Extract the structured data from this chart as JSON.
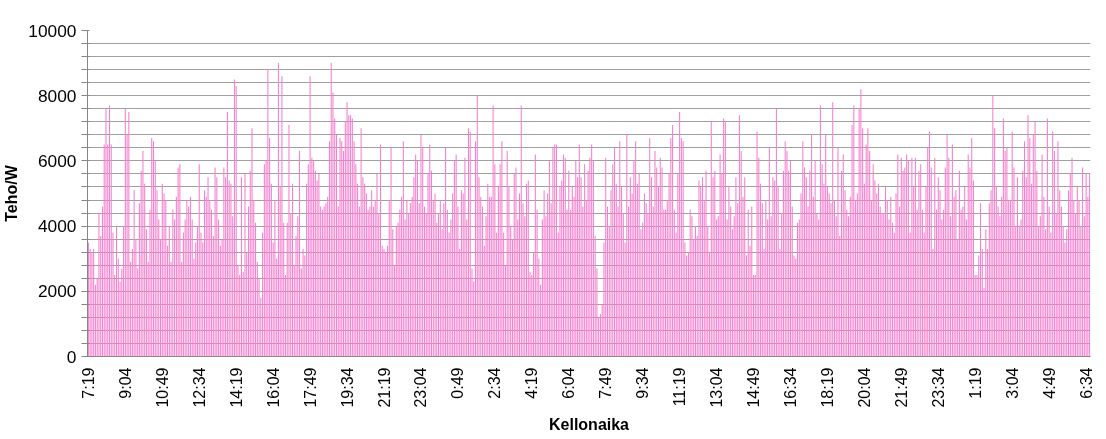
{
  "chart_data": {
    "type": "bar",
    "xlabel": "Kellonaika",
    "ylabel": "Teho/W",
    "color": "#f77fcf",
    "grid": "y",
    "ylim": [
      0,
      10000
    ],
    "yticks": [
      0,
      {
        "value": 400,
        "label": null
      },
      {
        "value": 800,
        "label": null
      },
      {
        "value": 1200,
        "label": null
      },
      {
        "value": 1600,
        "label": null
      },
      2000,
      {
        "value": 2400,
        "label": null
      },
      {
        "value": 2800,
        "label": null
      },
      {
        "value": 3200,
        "label": null
      },
      {
        "value": 3600,
        "label": null
      },
      4000,
      {
        "value": 4400,
        "label": null
      },
      {
        "value": 4800,
        "label": null
      },
      {
        "value": 5200,
        "label": null
      },
      {
        "value": 5600,
        "label": null
      },
      6000,
      {
        "value": 6400,
        "label": null
      },
      {
        "value": 6800,
        "label": null
      },
      {
        "value": 7200,
        "label": null
      },
      {
        "value": 7600,
        "label": null
      },
      8000,
      {
        "value": 8400,
        "label": null
      },
      {
        "value": 8800,
        "label": null
      },
      {
        "value": 9200,
        "label": null
      },
      {
        "value": 9600,
        "label": null
      },
      10000
    ],
    "categories": [
      "7:19",
      null,
      null,
      null,
      null,
      null,
      null,
      null,
      null,
      null,
      null,
      null,
      null,
      null,
      null,
      null,
      null,
      null,
      null,
      null,
      null,
      "9:04",
      null,
      null,
      null,
      null,
      null,
      null,
      null,
      null,
      null,
      null,
      null,
      null,
      null,
      null,
      null,
      null,
      null,
      null,
      null,
      null,
      "10:49",
      null,
      null,
      null,
      null,
      null,
      null,
      null,
      null,
      null,
      null,
      null,
      null,
      null,
      null,
      null,
      null,
      null,
      null,
      null,
      null,
      "12:34",
      null,
      null,
      null,
      null,
      null,
      null,
      null,
      null,
      null,
      null,
      null,
      null,
      null,
      null,
      null,
      null,
      null,
      null,
      null,
      null,
      "14:19",
      null,
      null,
      null,
      null,
      null,
      null,
      null,
      null,
      null,
      null,
      null,
      null,
      null,
      null,
      null,
      null,
      null,
      null,
      null,
      null,
      "16:04",
      null,
      null,
      null,
      null,
      null,
      null,
      null,
      null,
      null,
      null,
      null,
      null,
      null,
      null,
      null,
      null,
      null,
      null,
      null,
      null,
      "17:49",
      null,
      null,
      null,
      null,
      null,
      null,
      null,
      null,
      null,
      null,
      null,
      null,
      null,
      null,
      null,
      null,
      null,
      null,
      null,
      null,
      "19:34",
      null,
      null,
      null,
      null,
      null,
      null,
      null,
      null,
      null,
      null,
      null,
      null,
      null,
      null,
      null,
      null,
      null,
      null,
      null,
      null,
      "21:19",
      null,
      null,
      null,
      null,
      null,
      null,
      null,
      null,
      null,
      null,
      null,
      null,
      null,
      null,
      null,
      null,
      null,
      null,
      null,
      null,
      "23:04",
      null,
      null,
      null,
      null,
      null,
      null,
      null,
      null,
      null,
      null,
      null,
      null,
      null,
      null,
      null,
      null,
      null,
      null,
      null,
      null,
      "0:49",
      null,
      null,
      null,
      null,
      null,
      null,
      null,
      null,
      null,
      null,
      null,
      null,
      null,
      null,
      null,
      null,
      null,
      null,
      null,
      null,
      "2:34",
      null,
      null,
      null,
      null,
      null,
      null,
      null,
      null,
      null,
      null,
      null,
      null,
      null,
      null,
      null,
      null,
      null,
      null,
      null,
      null,
      "4:19",
      null,
      null,
      null,
      null,
      null,
      null,
      null,
      null,
      null,
      null,
      null,
      null,
      null,
      null,
      null,
      null,
      null,
      null,
      null,
      null,
      "6:04",
      null,
      null,
      null,
      null,
      null,
      null,
      null,
      null,
      null,
      null,
      null,
      null,
      null,
      null,
      null,
      null,
      null,
      null,
      null,
      null,
      "7:49",
      null,
      null,
      null,
      null,
      null,
      null,
      null,
      null,
      null,
      null,
      null,
      null,
      null,
      null,
      null,
      null,
      null,
      null,
      null,
      null,
      "9:34",
      null,
      null,
      null,
      null,
      null,
      null,
      null,
      null,
      null,
      null,
      null,
      null,
      null,
      null,
      null,
      null,
      null,
      null,
      null,
      null,
      "11:19",
      null,
      null,
      null,
      null,
      null,
      null,
      null,
      null,
      null,
      null,
      null,
      null,
      null,
      null,
      null,
      null,
      null,
      null,
      null,
      null,
      "13:04",
      null,
      null,
      null,
      null,
      null,
      null,
      null,
      null,
      null,
      null,
      null,
      null,
      null,
      null,
      null,
      null,
      null,
      null,
      null,
      null,
      "14:49",
      null,
      null,
      null,
      null,
      null,
      null,
      null,
      null,
      null,
      null,
      null,
      null,
      null,
      null,
      null,
      null,
      null,
      null,
      null,
      null,
      "16:34",
      null,
      null,
      null,
      null,
      null,
      null,
      null,
      null,
      null,
      null,
      null,
      null,
      null,
      null,
      null,
      null,
      null,
      null,
      null,
      null,
      "18:19",
      null,
      null,
      null,
      null,
      null,
      null,
      null,
      null,
      null,
      null,
      null,
      null,
      null,
      null,
      null,
      null,
      null,
      null,
      null,
      null,
      "20:04",
      null,
      null,
      null,
      null,
      null,
      null,
      null,
      null,
      null,
      null,
      null,
      null,
      null,
      null,
      null,
      null,
      null,
      null,
      null,
      null,
      "21:49",
      null,
      null,
      null,
      null,
      null,
      null,
      null,
      null,
      null,
      null,
      null,
      null,
      null,
      null,
      null,
      null,
      null,
      null,
      null,
      null,
      "23:34",
      null,
      null,
      null,
      null,
      null,
      null,
      null,
      null,
      null,
      null,
      null,
      null,
      null,
      null,
      null,
      null,
      null,
      null,
      null,
      null,
      "1:19",
      null,
      null,
      null,
      null,
      null,
      null,
      null,
      null,
      null,
      null,
      null,
      null,
      null,
      null,
      null,
      null,
      null,
      null,
      null,
      null,
      "3:04",
      null,
      null,
      null,
      null,
      null,
      null,
      null,
      null,
      null,
      null,
      null,
      null,
      null,
      null,
      null,
      null,
      null,
      null,
      null,
      null,
      "4:49",
      null,
      null,
      null,
      null,
      null,
      null,
      null,
      null,
      null,
      null,
      null,
      null,
      null,
      null,
      null,
      null,
      null,
      null,
      null,
      null,
      "6:34",
      null,
      null
    ],
    "values": [
      3500,
      3300,
      3200,
      3300,
      2200,
      2400,
      4400,
      3700,
      4600,
      6500,
      7600,
      6500,
      7700,
      6500,
      3800,
      2500,
      4000,
      3000,
      2300,
      2700,
      4000,
      7600,
      6800,
      7500,
      2900,
      3300,
      5100,
      3600,
      2700,
      4700,
      5700,
      6300,
      5300,
      3900,
      2900,
      4500,
      6700,
      6600,
      6000,
      5100,
      4200,
      3600,
      5300,
      5000,
      4800,
      3400,
      4000,
      2900,
      4500,
      4200,
      4900,
      5800,
      5900,
      2900,
      3800,
      4200,
      4800,
      4600,
      4900,
      4200,
      3000,
      3500,
      4000,
      5900,
      3800,
      3500,
      5100,
      4900,
      5500,
      4800,
      4500,
      3700,
      5800,
      5500,
      4200,
      3400,
      3600,
      5800,
      5500,
      7500,
      5400,
      5300,
      4300,
      8500,
      8300,
      2800,
      2500,
      5500,
      2600,
      5600,
      3200,
      4600,
      5700,
      7000,
      4800,
      4100,
      2900,
      2400,
      1800,
      3800,
      5900,
      6000,
      8800,
      6700,
      5300,
      3500,
      4800,
      3000,
      9000,
      5200,
      8600,
      4100,
      2500,
      4100,
      7100,
      4400,
      5300,
      2800,
      3700,
      4300,
      6300,
      2700,
      3300,
      3100,
      5300,
      5900,
      8600,
      6100,
      6000,
      5700,
      5400,
      5600,
      4600,
      4500,
      4600,
      4700,
      4900,
      6600,
      9000,
      8100,
      7300,
      6800,
      4600,
      6700,
      6600,
      6300,
      7200,
      7800,
      7400,
      7400,
      7300,
      6600,
      5900,
      5300,
      4600,
      7000,
      5500,
      5300,
      5000,
      4500,
      4600,
      5100,
      4600,
      4800,
      5600,
      4400,
      6500,
      3400,
      3300,
      3200,
      3400,
      4800,
      6400,
      3900,
      2800,
      4000,
      4100,
      4500,
      4900,
      6600,
      4200,
      4800,
      4400,
      4700,
      4900,
      5500,
      6200,
      6000,
      4700,
      6800,
      6400,
      4600,
      4400,
      5600,
      6500,
      5700,
      4800,
      5000,
      4100,
      4400,
      4800,
      3900,
      4700,
      6400,
      4500,
      3800,
      4200,
      5000,
      6000,
      6200,
      4600,
      3300,
      5100,
      5000,
      6100,
      4200,
      7000,
      6900,
      2700,
      2300,
      6600,
      8000,
      5500,
      4900,
      4600,
      3400,
      4300,
      5300,
      4900,
      4900,
      7700,
      5900,
      3800,
      5200,
      5900,
      6600,
      3800,
      2800,
      6300,
      5200,
      4000,
      3600,
      5600,
      5800,
      4200,
      5000,
      7700,
      4700,
      4300,
      5300,
      5400,
      2600,
      2500,
      3200,
      6200,
      4500,
      3000,
      2200,
      4200,
      5100,
      4300,
      5000,
      6000,
      4700,
      6400,
      6500,
      6500,
      3800,
      5200,
      5400,
      6200,
      6100,
      4500,
      5700,
      4500,
      5200,
      4900,
      6000,
      5500,
      6500,
      5500,
      4600,
      5900,
      4800,
      5700,
      6100,
      6500,
      6000,
      3700,
      2700,
      1200,
      1300,
      1600,
      3500,
      6100,
      4600,
      4000,
      5100,
      5900,
      6400,
      5300,
      4600,
      6600,
      5200,
      4400,
      3500,
      6800,
      4600,
      5500,
      5000,
      6000,
      6600,
      5300,
      5600,
      3900,
      4100,
      5000,
      4700,
      4400,
      6700,
      5500,
      4600,
      6300,
      5800,
      5200,
      6100,
      5800,
      4500,
      4500,
      4800,
      5600,
      6700,
      7100,
      4500,
      3800,
      5600,
      7500,
      6700,
      6600,
      3500,
      3100,
      3200,
      4500,
      4300,
      3600,
      4000,
      3700,
      5400,
      5200,
      5500,
      4800,
      5700,
      4000,
      3200,
      7200,
      5500,
      5700,
      4200,
      4300,
      6200,
      5600,
      7300,
      7200,
      4200,
      5200,
      4600,
      3900,
      4300,
      5500,
      4700,
      7400,
      6300,
      4900,
      5500,
      3100,
      4500,
      3400,
      4600,
      2500,
      2500,
      6900,
      6100,
      5300,
      4700,
      3300,
      4800,
      4200,
      6400,
      4300,
      5500,
      5400,
      7600,
      5200,
      3300,
      4400,
      5700,
      6600,
      6300,
      5700,
      6000,
      4600,
      3100,
      3000,
      4100,
      4200,
      5000,
      6600,
      5800,
      5500,
      4600,
      5700,
      6800,
      4900,
      6000,
      4400,
      4200,
      7700,
      5900,
      5300,
      6800,
      5200,
      5000,
      4700,
      7800,
      4800,
      4300,
      6400,
      3700,
      5700,
      6200,
      5100,
      4500,
      4300,
      4900,
      7100,
      7700,
      4800,
      5000,
      7600,
      8200,
      7000,
      5300,
      6500,
      7000,
      6300,
      4800,
      5900,
      5400,
      5000,
      5300,
      4600,
      4400,
      4400,
      5200,
      4800,
      4200,
      4900,
      4100,
      3800,
      5000,
      6200,
      4600,
      6100,
      5700,
      5800,
      6200,
      6000,
      3800,
      6100,
      5200,
      6100,
      4500,
      5700,
      5900,
      4500,
      3800,
      5200,
      6400,
      6900,
      5800,
      3300,
      6100,
      4500,
      5500,
      5100,
      4200,
      4500,
      5800,
      6800,
      6100,
      4300,
      6500,
      4900,
      5100,
      3600,
      5700,
      4500,
      4600,
      5200,
      4200,
      6200,
      5800,
      6700,
      5400,
      2500,
      2500,
      3100,
      4700,
      3300,
      2100,
      3900,
      3300,
      4700,
      5100,
      8000,
      7000,
      5200,
      4600,
      4300,
      4900,
      7300,
      6300,
      6400,
      4800,
      4800,
      6900,
      5800,
      4000,
      5500,
      4000,
      4200,
      5700,
      6600,
      5500,
      7400,
      6700,
      5300,
      6800,
      7200,
      5700,
      4000,
      4300,
      6200,
      4900,
      3900,
      7300,
      4600,
      3800,
      6900,
      6300,
      4400,
      6600,
      5100,
      4600,
      4000,
      3500,
      3900,
      5100,
      5600,
      6100,
      4800,
      4400,
      5200,
      4800,
      4000,
      5800,
      4300,
      5600,
      4900,
      5600
    ]
  }
}
